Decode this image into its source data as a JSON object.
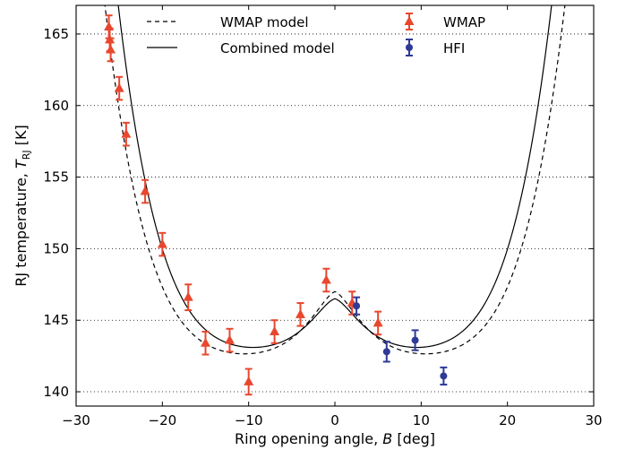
{
  "chart_data": {
    "type": "scatter",
    "xlabel": "Ring opening angle, B [deg]",
    "ylabel": "RJ temperature, T_RJ [K]",
    "xlim": [
      -30,
      30
    ],
    "ylim": [
      139,
      167
    ],
    "xticks": [
      -30,
      -20,
      -10,
      0,
      10,
      20,
      30
    ],
    "yticks": [
      140,
      145,
      150,
      155,
      160,
      165
    ],
    "grid": "horizontal dotted",
    "legend": [
      "WMAP model",
      "Combined model",
      "WMAP",
      "HFI"
    ],
    "legend_placement": "top",
    "series": [
      {
        "name": "WMAP",
        "marker": "triangle",
        "color": "#e8472e",
        "points": [
          {
            "x": -26.2,
            "y": 165.5,
            "err": 0.8
          },
          {
            "x": -26.1,
            "y": 164.6,
            "err": 0.8
          },
          {
            "x": -26.0,
            "y": 163.9,
            "err": 0.8
          },
          {
            "x": -25.0,
            "y": 161.2,
            "err": 0.8
          },
          {
            "x": -24.2,
            "y": 158.0,
            "err": 0.8
          },
          {
            "x": -22.0,
            "y": 154.0,
            "err": 0.8
          },
          {
            "x": -20.0,
            "y": 150.3,
            "err": 0.8
          },
          {
            "x": -17.0,
            "y": 146.6,
            "err": 0.9
          },
          {
            "x": -15.0,
            "y": 143.4,
            "err": 0.8
          },
          {
            "x": -12.2,
            "y": 143.6,
            "err": 0.8
          },
          {
            "x": -10.0,
            "y": 140.7,
            "err": 0.9
          },
          {
            "x": -7.0,
            "y": 144.2,
            "err": 0.8
          },
          {
            "x": -4.0,
            "y": 145.4,
            "err": 0.8
          },
          {
            "x": -1.0,
            "y": 147.8,
            "err": 0.8
          },
          {
            "x": 2.0,
            "y": 146.2,
            "err": 0.8
          },
          {
            "x": 5.0,
            "y": 144.8,
            "err": 0.8
          }
        ]
      },
      {
        "name": "HFI",
        "marker": "circle",
        "color": "#2e3a96",
        "points": [
          {
            "x": 2.5,
            "y": 146.0,
            "err": 0.6
          },
          {
            "x": 6.0,
            "y": 142.8,
            "err": 0.7
          },
          {
            "x": 9.3,
            "y": 143.6,
            "err": 0.7
          },
          {
            "x": 12.6,
            "y": 141.1,
            "err": 0.6
          }
        ]
      }
    ],
    "models": [
      {
        "name": "WMAP model",
        "style": "dashed",
        "min_x": -10.5,
        "min_y": 142.65,
        "a": 0.0298,
        "b": 0.000243,
        "peak_y": 147.0,
        "peak_width": 1.5
      },
      {
        "name": "Combined model",
        "style": "solid",
        "min_x": -9.5,
        "min_y": 143.1,
        "a": 0.0327,
        "b": 0.000268,
        "peak_y": 146.5,
        "peak_width": 1.5
      }
    ]
  }
}
